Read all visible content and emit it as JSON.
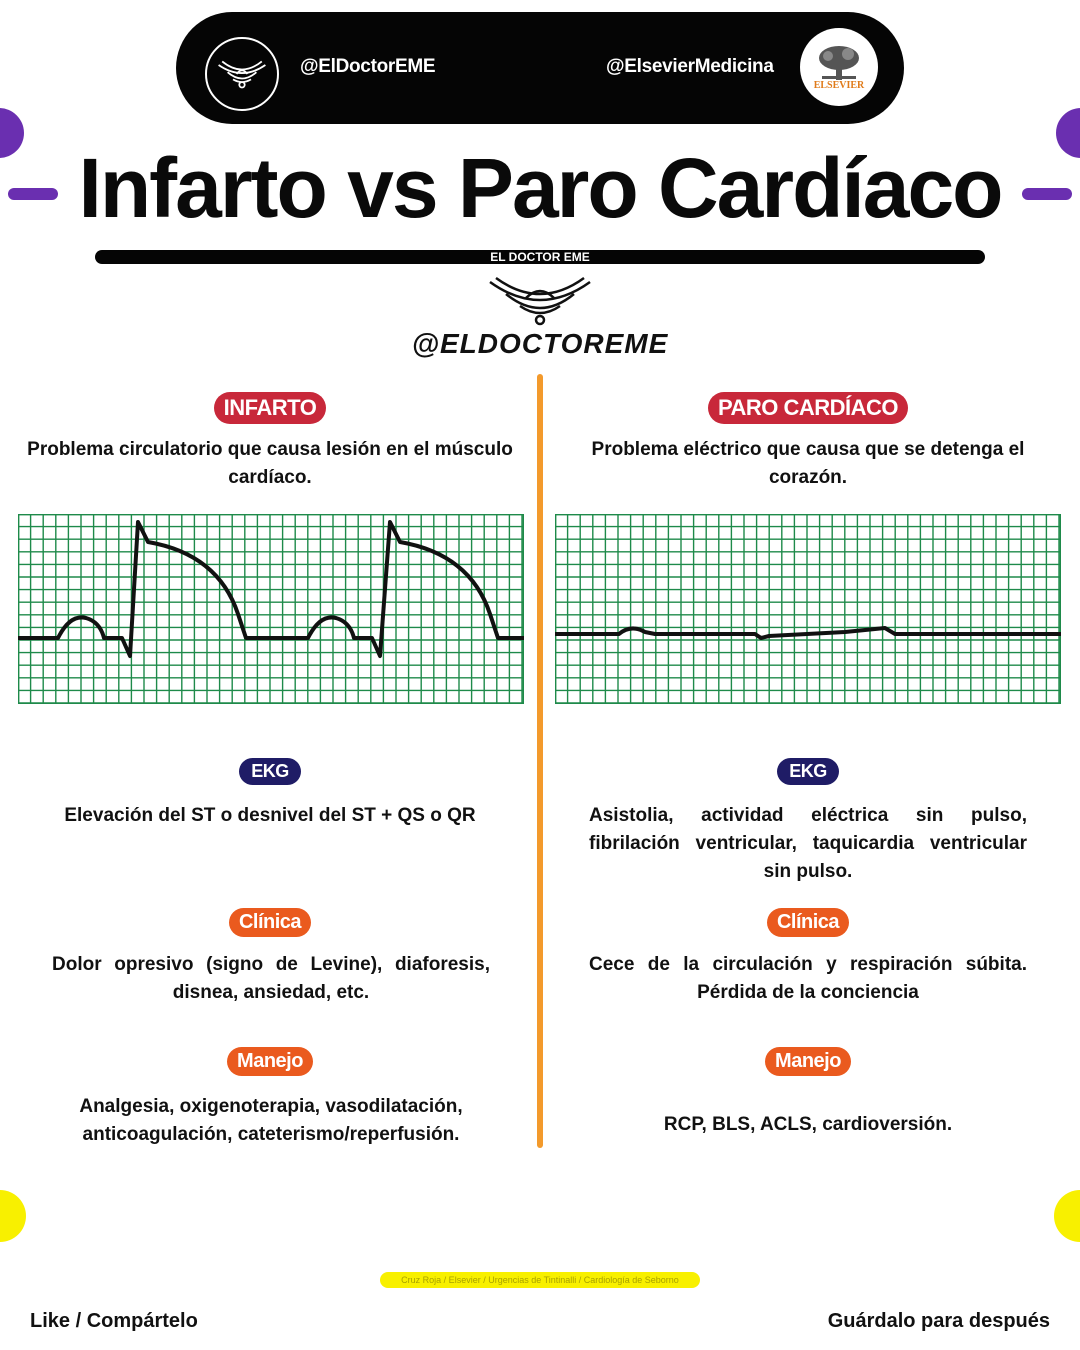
{
  "header": {
    "handle_left": "@ElDoctorEME",
    "handle_right": "@ElsevierMedicina",
    "elsevier_logo_text": "ELSEVIER"
  },
  "title": "Infarto vs Paro Cardíaco",
  "title_bar_label": "EL DOCTOR EME",
  "brand_handle": "@ELDOCTOREME",
  "left": {
    "heading": "INFARTO",
    "description": "Problema circulatorio que causa lesión en el músculo cardíaco.",
    "ekg_label": "EKG",
    "ekg_text": "Elevación del ST o desnivel del ST + QS o QR",
    "clinica_label": "Clínica",
    "clinica_text": "Dolor opresivo (signo de Levine), diaforesis, disnea, ansiedad, etc.",
    "manejo_label": "Manejo",
    "manejo_text": "Analgesia, oxigenoterapia, vasodilatación, anticoagulación, cateterismo/reperfusión."
  },
  "right": {
    "heading": "PARO CARDÍACO",
    "description": "Problema eléctrico que causa que se detenga el corazón.",
    "ekg_label": "EKG",
    "ekg_text": "Asistolia, actividad eléctrica sin pulso, fibrilación ventricular, taquicardia ventricular sin pulso.",
    "clinica_label": "Clínica",
    "clinica_text": "Cece de la circulación y respiración súbita. Pérdida de la conciencia",
    "manejo_label": "Manejo",
    "manejo_text": "RCP, BLS, ACLS, cardioversión."
  },
  "sources": "Cruz Roja / Elsevier / Urgencias de Tintinalli / Cardiología de Seborno",
  "footer": {
    "left": "Like / Compártelo",
    "right": "Guárdalo para después"
  },
  "colors": {
    "purple": "#6a2fb0",
    "yellow": "#f8f000",
    "red_badge": "#c8283a",
    "navy_badge": "#1f1c66",
    "orange_badge": "#ea5a1e",
    "divider": "#f39a2c",
    "ecg_grid": "#1e8a4a"
  },
  "icons": {
    "doctor_logo": "winged-crest-icon"
  }
}
